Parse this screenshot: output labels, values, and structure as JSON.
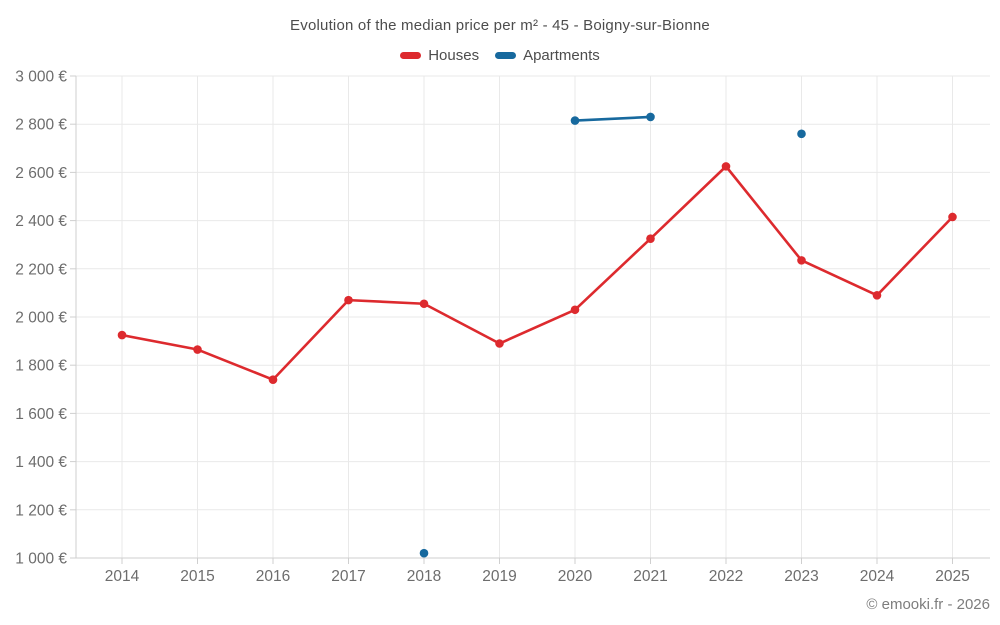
{
  "page": {
    "title": "Evolution of the median price per m² - 45 - Boigny-sur-Bionne",
    "copyright": "© emooki.fr - 2026"
  },
  "colors": {
    "houses": "#dd2a2e",
    "apartments": "#17699e",
    "grid": "#e9e9e9",
    "axis": "#cfcfcf",
    "title_text": "#4d4d4d",
    "tick_text": "#6d6d6d",
    "footer_text": "#7d7d7d",
    "background": "#ffffff"
  },
  "chart_data": {
    "type": "line",
    "title": "Evolution of the median price per m² - 45 - Boigny-sur-Bionne",
    "categories": [
      "2014",
      "2015",
      "2016",
      "2017",
      "2018",
      "2019",
      "2020",
      "2021",
      "2022",
      "2023",
      "2024",
      "2025"
    ],
    "series": [
      {
        "name": "Houses",
        "color": "#dd2a2e",
        "values": [
          1925,
          1865,
          1740,
          2070,
          2055,
          1890,
          2030,
          2325,
          2625,
          2235,
          2090,
          2415
        ]
      },
      {
        "name": "Apartments",
        "color": "#17699e",
        "values": [
          null,
          null,
          null,
          null,
          1020,
          null,
          2815,
          2830,
          null,
          2760,
          null,
          null
        ]
      }
    ],
    "ylim": [
      1000,
      3000
    ],
    "ytick_step": 200,
    "ytick_labels": [
      "1 000 €",
      "1 200 €",
      "1 400 €",
      "1 600 €",
      "1 800 €",
      "2 000 €",
      "2 200 €",
      "2 400 €",
      "2 600 €",
      "2 800 €",
      "3 000 €"
    ],
    "currency_suffix": "€",
    "grid": true,
    "legend_position": "top"
  }
}
